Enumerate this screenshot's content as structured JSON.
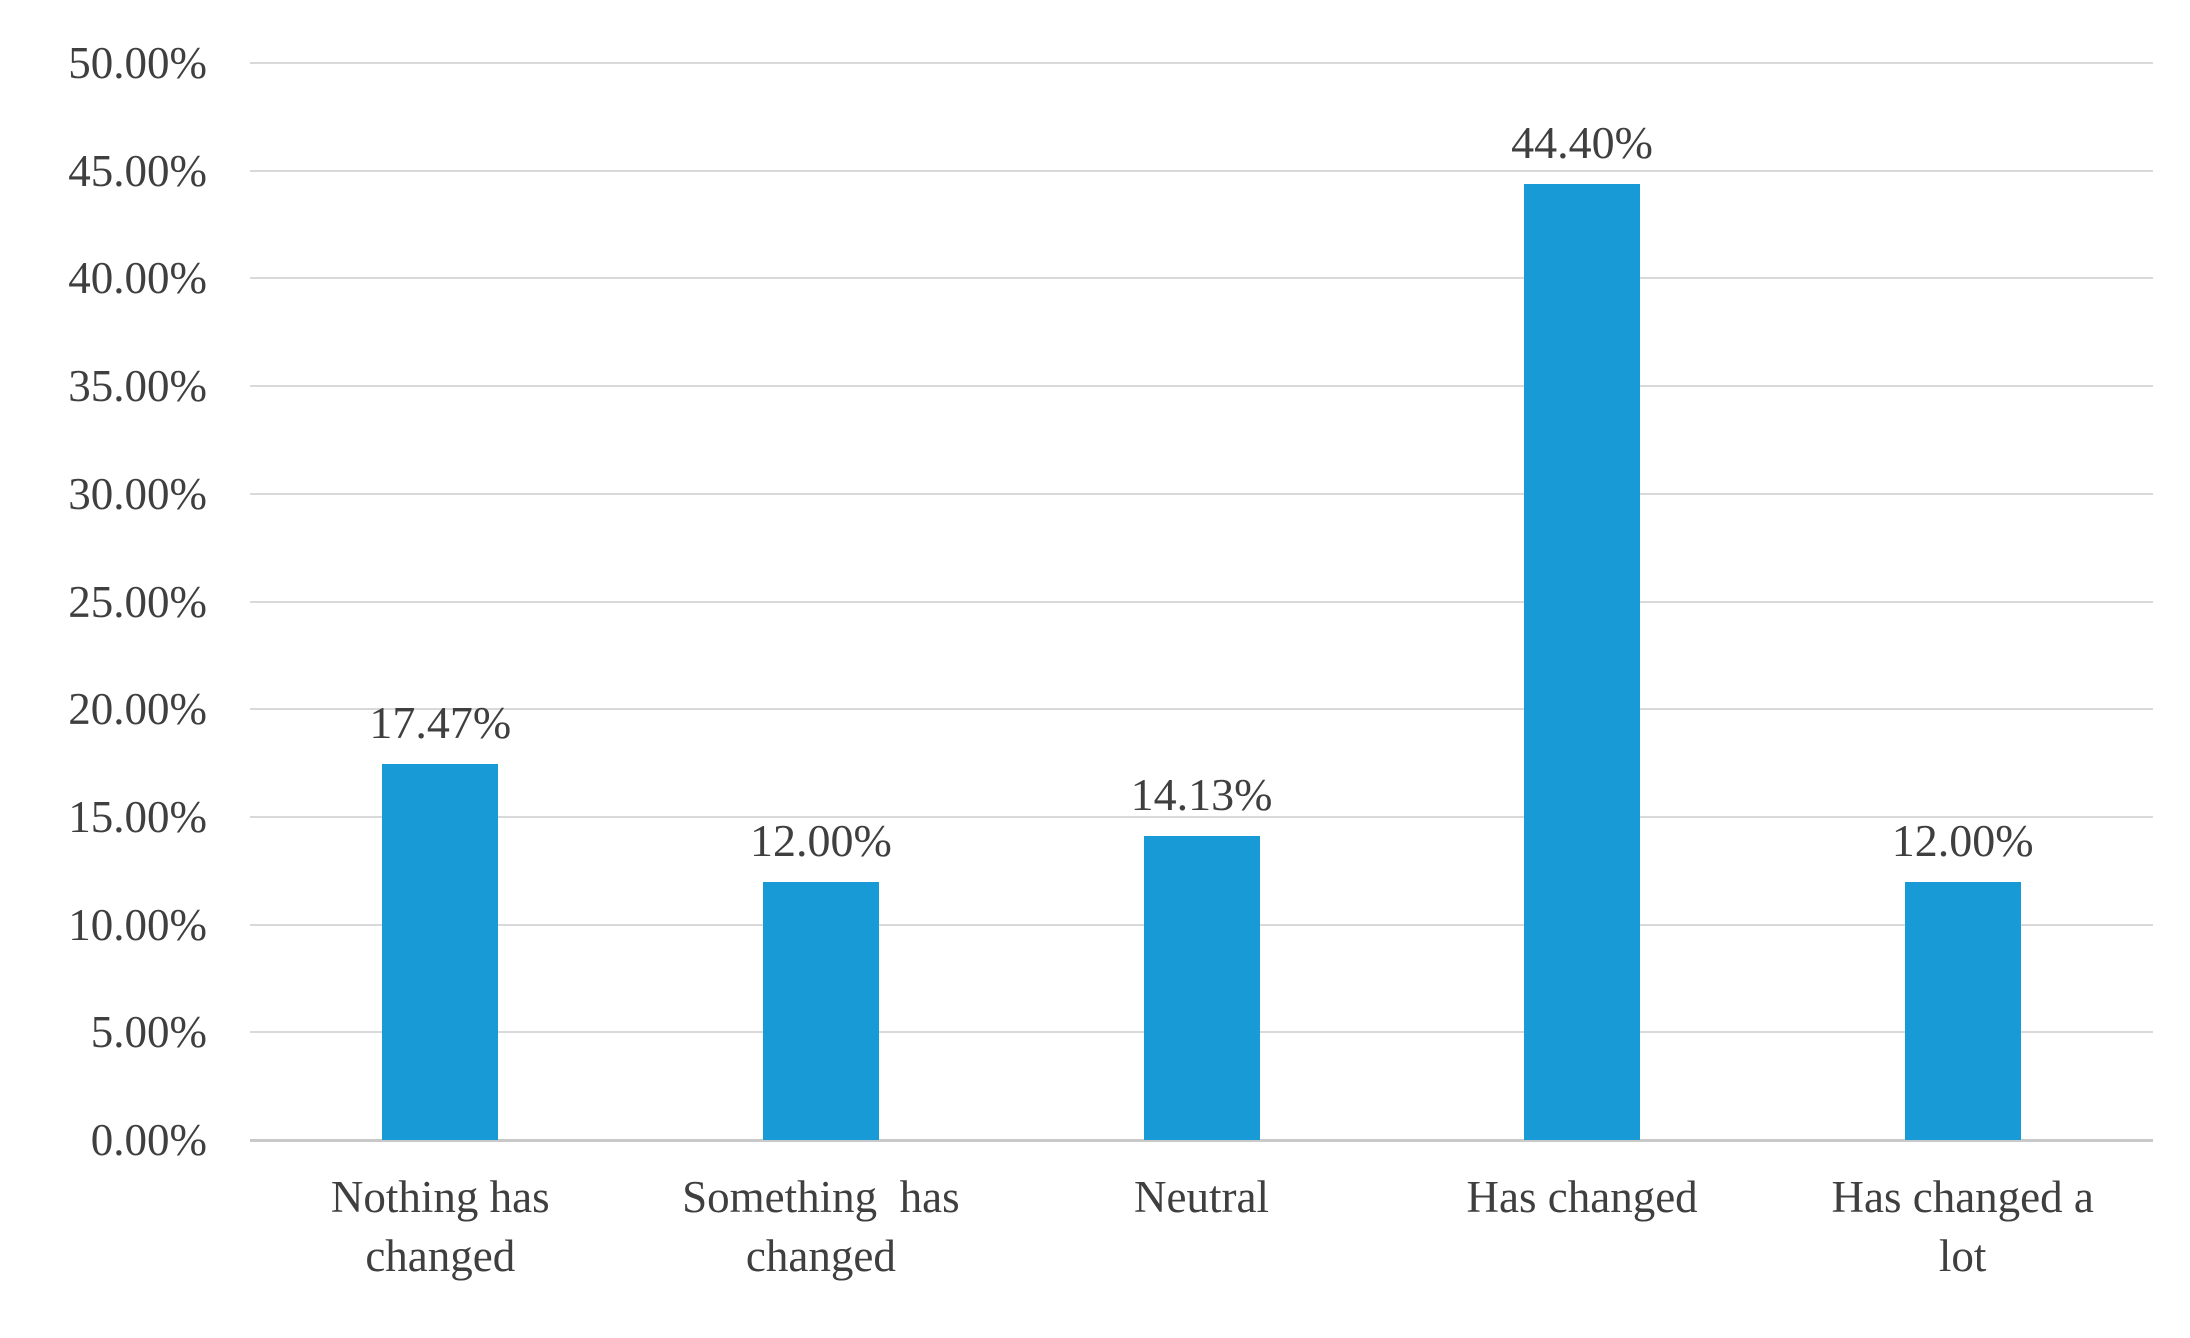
{
  "chart_data": {
    "type": "bar",
    "title": "",
    "xlabel": "",
    "ylabel": "",
    "categories": [
      "Nothing has\nchanged",
      "Something  has\nchanged",
      "Neutral",
      "Has changed",
      "Has changed a\nlot"
    ],
    "values": [
      17.47,
      12.0,
      14.13,
      44.4,
      12.0
    ],
    "data_labels": [
      "17.47%",
      "12.00%",
      "14.13%",
      "44.40%",
      "12.00%"
    ],
    "ylim": [
      0,
      50
    ],
    "ytick_step": 5,
    "ytick_labels": [
      "0.00%",
      "5.00%",
      "10.00%",
      "15.00%",
      "20.00%",
      "25.00%",
      "30.00%",
      "35.00%",
      "40.00%",
      "45.00%",
      "50.00%"
    ],
    "grid": true,
    "legend_position": "none",
    "colors": {
      "bar": "#189AD6",
      "gridline": "#D9D9D9",
      "axis_line": "#C9C9C9",
      "text": "#3F3F3F"
    }
  }
}
